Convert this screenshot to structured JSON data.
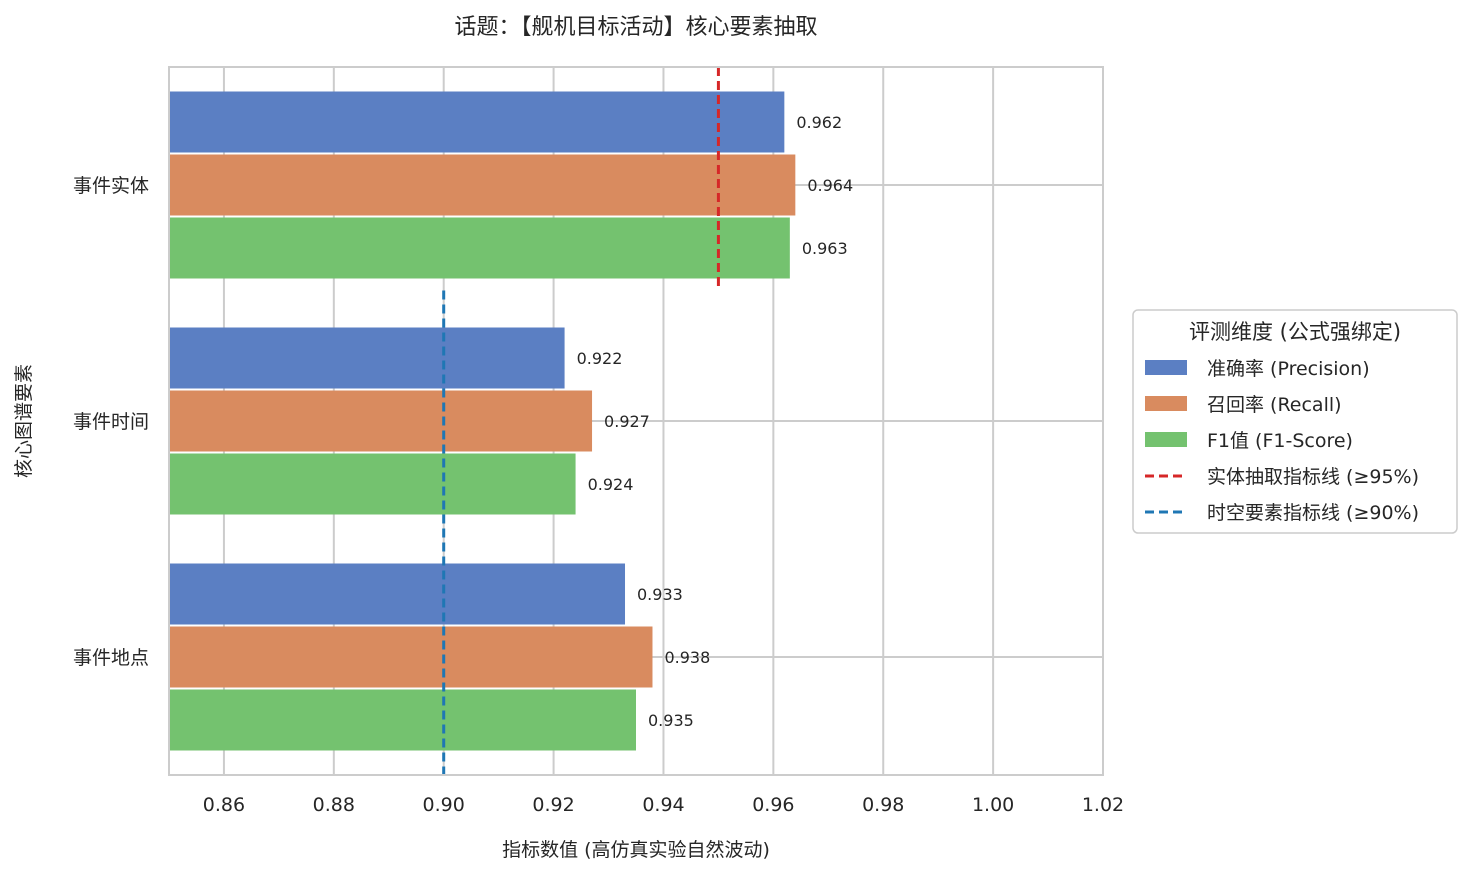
{
  "chart_data": {
    "type": "bar",
    "orientation": "horizontal",
    "title": "话题：【舰机目标活动】核心要素抽取",
    "xlabel": "指标数值 (高仿真实验自然波动)",
    "ylabel": "核心图谱要素",
    "xlim": [
      0.85,
      1.02
    ],
    "xticks": [
      "0.86",
      "0.88",
      "0.90",
      "0.92",
      "0.94",
      "0.96",
      "0.98",
      "1.00",
      "1.02"
    ],
    "xtick_values": [
      0.86,
      0.88,
      0.9,
      0.92,
      0.94,
      0.96,
      0.98,
      1.0,
      1.02
    ],
    "grid": true,
    "categories": [
      "事件实体",
      "事件时间",
      "事件地点"
    ],
    "series": [
      {
        "name": "准确率 (Precision)",
        "color": "#5b7fc3",
        "values": [
          0.962,
          0.922,
          0.933
        ],
        "labels": [
          "0.962",
          "0.922",
          "0.933"
        ]
      },
      {
        "name": "召回率 (Recall)",
        "color": "#d98b5f",
        "values": [
          0.964,
          0.927,
          0.938
        ],
        "labels": [
          "0.964",
          "0.927",
          "0.938"
        ]
      },
      {
        "name": "F1值 (F1-Score)",
        "color": "#74c26f",
        "values": [
          0.963,
          0.924,
          0.935
        ],
        "labels": [
          "0.963",
          "0.924",
          "0.935"
        ]
      }
    ],
    "reference_lines": [
      {
        "name": "实体抽取指标线 (≥95%)",
        "value": 0.95,
        "color": "#d62728",
        "style": "dashed",
        "applies_to": [
          "事件实体"
        ]
      },
      {
        "name": "时空要素指标线 (≥90%)",
        "value": 0.9,
        "color": "#1f77b4",
        "style": "dashed",
        "applies_to": [
          "事件时间",
          "事件地点"
        ]
      }
    ],
    "legend": {
      "title": "评测维度 (公式强绑定)",
      "placement": "right-center"
    }
  }
}
